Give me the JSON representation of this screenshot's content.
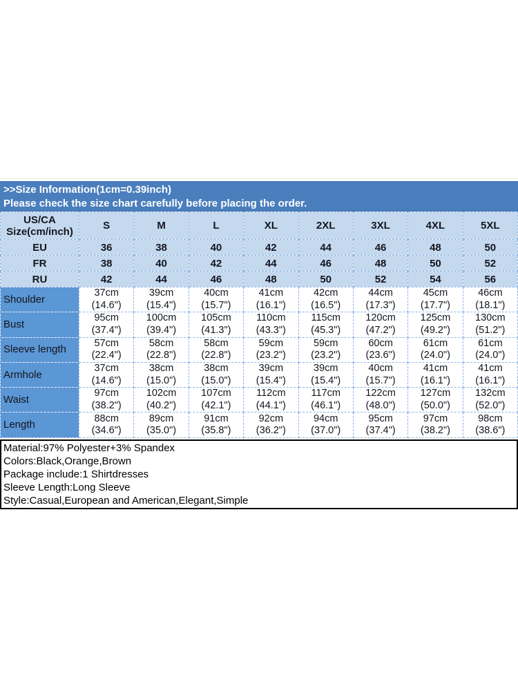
{
  "banner": {
    "title": ">>Size Information(1cm=0.39inch)",
    "subtitle": "Please check the size chart carefully before placing the order."
  },
  "table": {
    "corner_line1": "US/CA",
    "corner_line2": "Size(cm/inch)",
    "size_headers": [
      "S",
      "M",
      "L",
      "XL",
      "2XL",
      "3XL",
      "4XL",
      "5XL"
    ],
    "region_rows": [
      {
        "label": "EU",
        "values": [
          "36",
          "38",
          "40",
          "42",
          "44",
          "46",
          "48",
          "50"
        ]
      },
      {
        "label": "FR",
        "values": [
          "38",
          "40",
          "42",
          "44",
          "46",
          "48",
          "50",
          "52"
        ]
      },
      {
        "label": "RU",
        "values": [
          "42",
          "44",
          "46",
          "48",
          "50",
          "52",
          "54",
          "56"
        ]
      }
    ],
    "measurement_rows": [
      {
        "label": "Shoulder",
        "cm": [
          "37cm",
          "39cm",
          "40cm",
          "41cm",
          "42cm",
          "44cm",
          "45cm",
          "46cm"
        ],
        "inch": [
          "(14.6\")",
          "(15.4\")",
          "(15.7\")",
          "(16.1\")",
          "(16.5\")",
          "(17.3\")",
          "(17.7\")",
          "(18.1\")"
        ]
      },
      {
        "label": "Bust",
        "cm": [
          "95cm",
          "100cm",
          "105cm",
          "110cm",
          "115cm",
          "120cm",
          "125cm",
          "130cm"
        ],
        "inch": [
          "(37.4\")",
          "(39.4\")",
          "(41.3\")",
          "(43.3\")",
          "(45.3\")",
          "(47.2\")",
          "(49.2\")",
          "(51.2\")"
        ]
      },
      {
        "label": "Sleeve length",
        "cm": [
          "57cm",
          "58cm",
          "58cm",
          "59cm",
          "59cm",
          "60cm",
          "61cm",
          "61cm"
        ],
        "inch": [
          "(22.4\")",
          "(22.8\")",
          "(22.8\")",
          "(23.2\")",
          "(23.2\")",
          "(23.6\")",
          "(24.0\")",
          "(24.0\")"
        ]
      },
      {
        "label": "Armhole",
        "cm": [
          "37cm",
          "38cm",
          "38cm",
          "39cm",
          "39cm",
          "40cm",
          "41cm",
          "41cm"
        ],
        "inch": [
          "(14.6\")",
          "(15.0\")",
          "(15.0\")",
          "(15.4\")",
          "(15.4\")",
          "(15.7\")",
          "(16.1\")",
          "(16.1\")"
        ]
      },
      {
        "label": "Waist",
        "cm": [
          "97cm",
          "102cm",
          "107cm",
          "112cm",
          "117cm",
          "122cm",
          "127cm",
          "132cm"
        ],
        "inch": [
          "(38.2\")",
          "(40.2\")",
          "(42.1\")",
          "(44.1\")",
          "(46.1\")",
          "(48.0\")",
          "(50.0\")",
          "(52.0\")"
        ]
      },
      {
        "label": "Length",
        "cm": [
          "88cm",
          "89cm",
          "91cm",
          "92cm",
          "94cm",
          "95cm",
          "97cm",
          "98cm"
        ],
        "inch": [
          "(34.6\")",
          "(35.0\")",
          "(35.8\")",
          "(36.2\")",
          "(37.0\")",
          "(37.4\")",
          "(38.2\")",
          "(38.6\")"
        ]
      }
    ]
  },
  "details": [
    "Material:97% Polyester+3% Spandex",
    "Colors:Black,Orange,Brown",
    "Package include:1 Shirtdresses",
    "Sleeve Length:Long Sleeve",
    "Style:Casual,European and American,Elegant,Simple"
  ],
  "colors": {
    "banner_bg": "#4a7ebd",
    "header_cell_bg": "#c4d8ee",
    "label_column_bg": "#5b96d5",
    "grid_line": "#8db4e2",
    "banner_text": "#ffffff",
    "table_text": "#14161d"
  }
}
